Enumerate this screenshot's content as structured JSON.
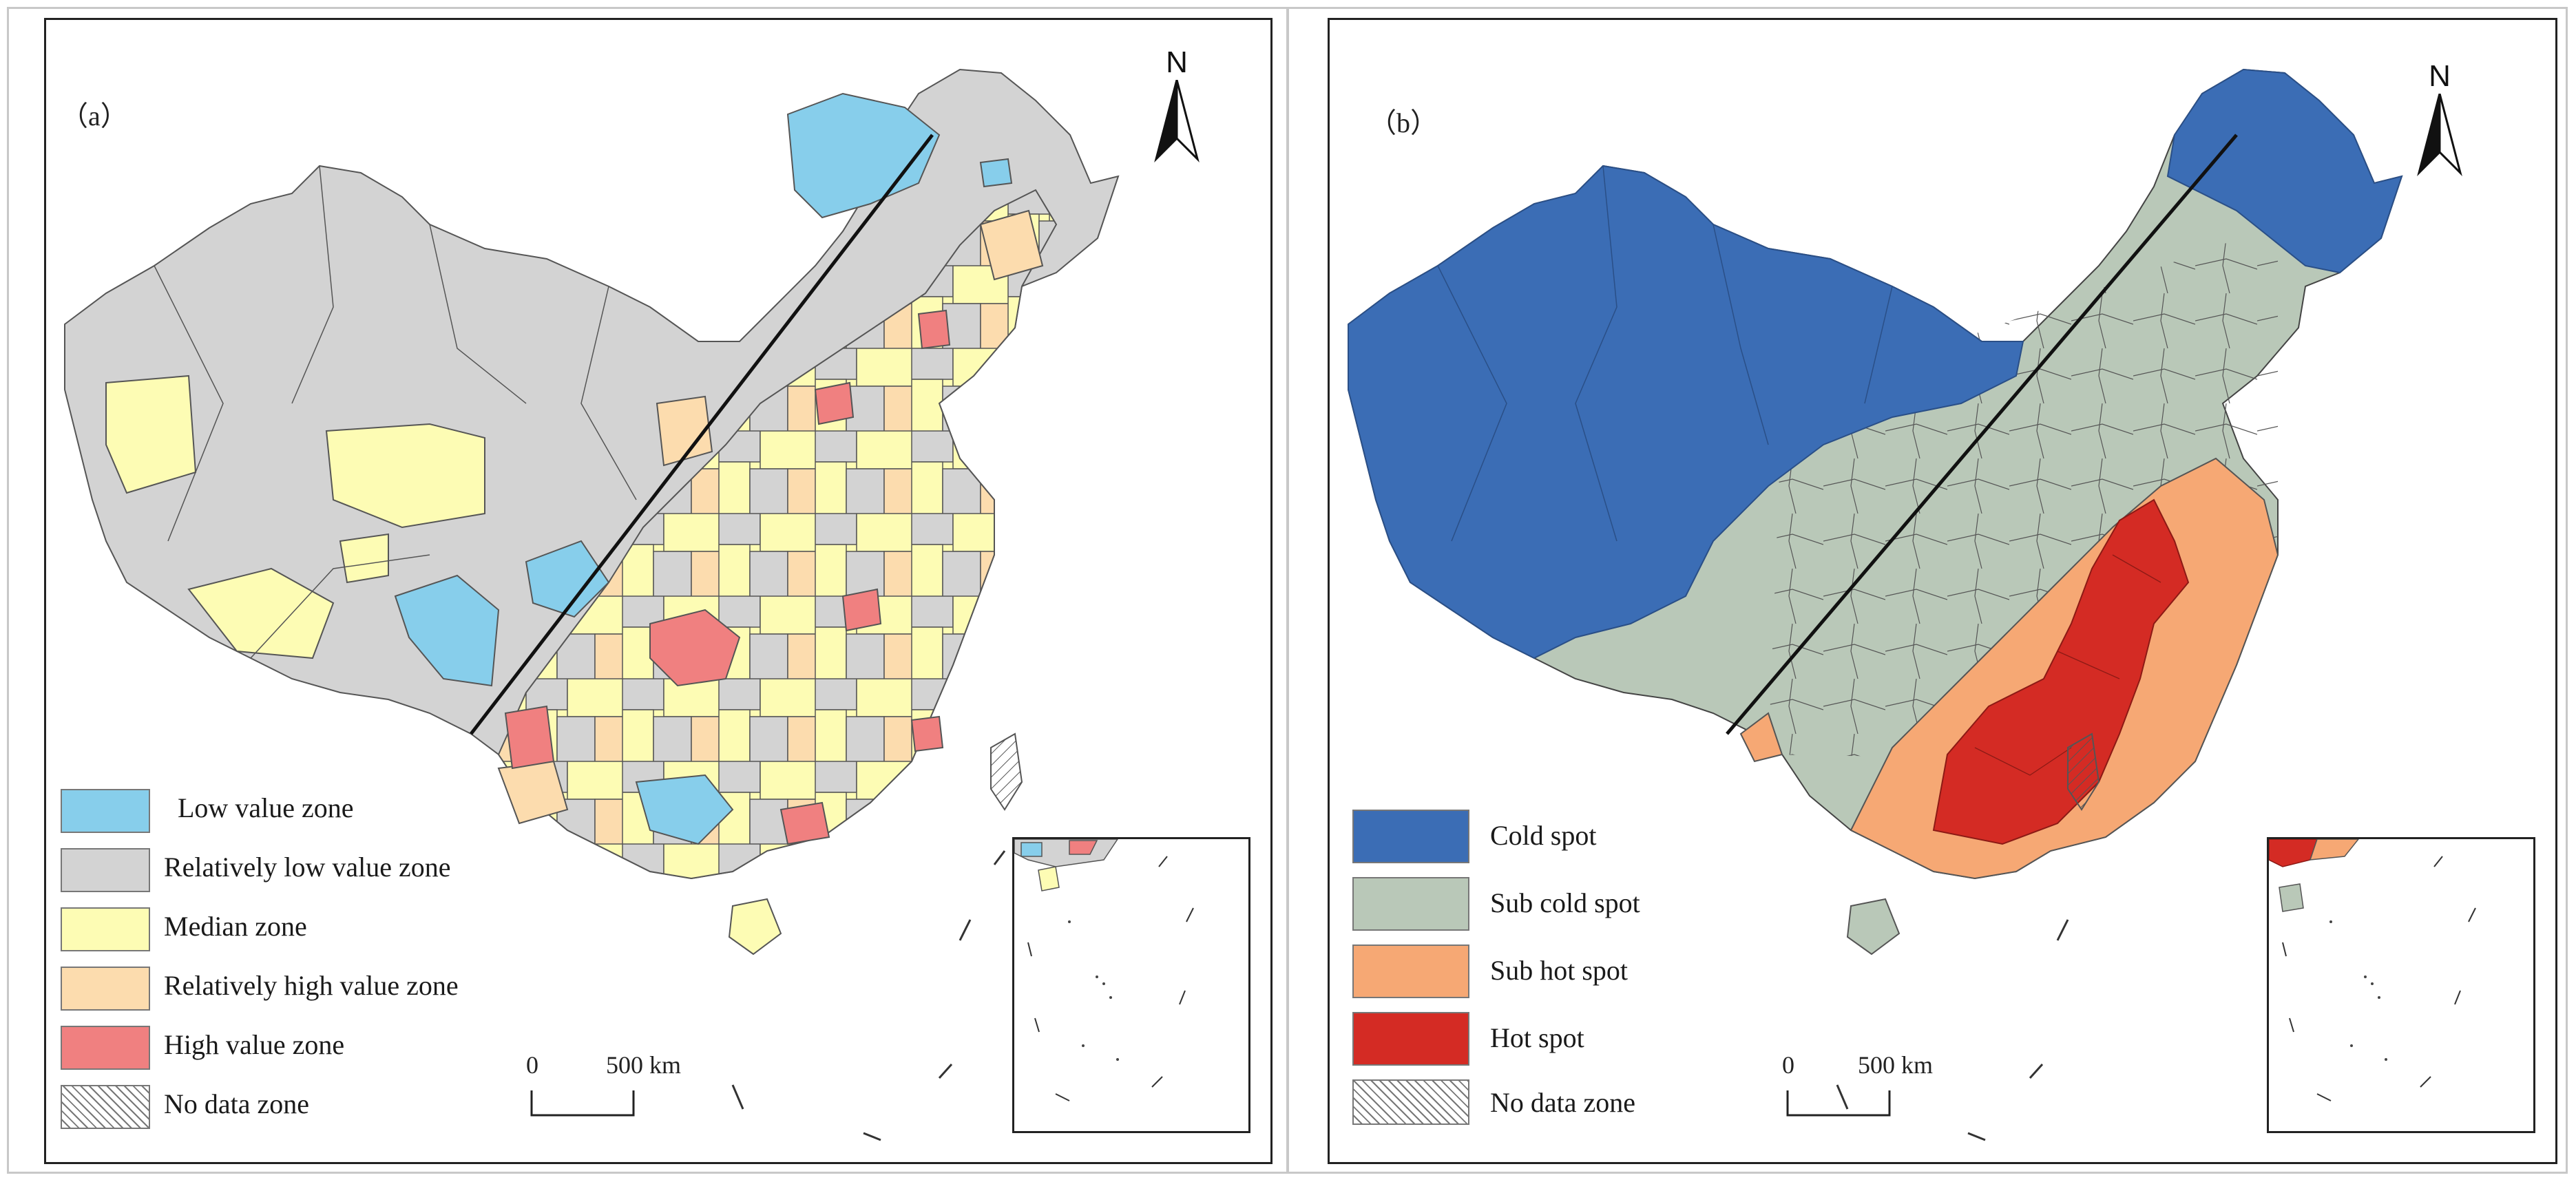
{
  "panels": [
    {
      "label": "（a）",
      "north_letter": "N",
      "legend": [
        {
          "label": "Low value zone",
          "color": "#87ceeb"
        },
        {
          "label": "Relatively low value zone",
          "color": "#d3d3d3"
        },
        {
          "label": "Median zone",
          "color": "#fdfcb4"
        },
        {
          "label": "Relatively high value zone",
          "color": "#fcdcae"
        },
        {
          "label": "High value zone",
          "color": "#f08080"
        },
        {
          "label": "No data zone",
          "color": "hatched"
        }
      ],
      "scale": {
        "zero": "0",
        "distance": "500 km"
      }
    },
    {
      "label": "（b）",
      "north_letter": "N",
      "legend": [
        {
          "label": "Cold spot",
          "color": "#3b6db5"
        },
        {
          "label": "Sub cold spot",
          "color": "#b9c8b8"
        },
        {
          "label": "Sub hot spot",
          "color": "#f6a874"
        },
        {
          "label": "Hot spot",
          "color": "#d42b24"
        },
        {
          "label": "No data zone",
          "color": "hatched"
        }
      ],
      "scale": {
        "zero": "0",
        "distance": "500 km"
      }
    }
  ]
}
